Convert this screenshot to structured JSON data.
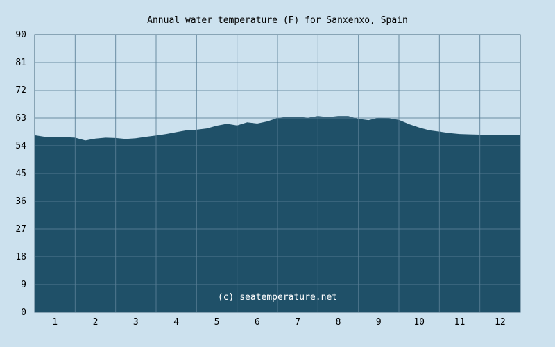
{
  "chart_data": {
    "type": "area",
    "title": "Annual water temperature (F) for Sanxenxo, Spain",
    "xlabel": "",
    "ylabel": "",
    "x_ticks": [
      "1",
      "2",
      "3",
      "4",
      "5",
      "6",
      "7",
      "8",
      "9",
      "10",
      "11",
      "12"
    ],
    "y_ticks": [
      "0",
      "9",
      "18",
      "27",
      "36",
      "45",
      "54",
      "63",
      "72",
      "81",
      "90"
    ],
    "ylim": [
      0,
      90
    ],
    "xlim": [
      0,
      12
    ],
    "grid": true,
    "annotation": "(c) seatemperature.net",
    "x": [
      0.0,
      0.25,
      0.5,
      0.75,
      1.0,
      1.25,
      1.5,
      1.75,
      2.0,
      2.25,
      2.5,
      2.75,
      3.0,
      3.25,
      3.5,
      3.75,
      4.0,
      4.25,
      4.5,
      4.75,
      5.0,
      5.25,
      5.5,
      5.75,
      6.0,
      6.25,
      6.5,
      6.75,
      7.0,
      7.25,
      7.5,
      7.75,
      8.0,
      8.25,
      8.5,
      8.75,
      9.0,
      9.25,
      9.5,
      9.75,
      10.0,
      10.25,
      10.5,
      10.75,
      11.0,
      11.25,
      11.5,
      11.75,
      12.0
    ],
    "values": [
      57.4,
      56.9,
      56.7,
      56.8,
      56.6,
      55.7,
      56.3,
      56.6,
      56.5,
      56.2,
      56.4,
      56.9,
      57.3,
      57.8,
      58.4,
      59.0,
      59.2,
      59.6,
      60.5,
      61.1,
      60.6,
      61.6,
      61.2,
      61.9,
      63.0,
      63.4,
      63.4,
      63.1,
      63.6,
      63.3,
      63.6,
      63.6,
      62.7,
      62.3,
      63.1,
      62.9,
      62.4,
      61.0,
      59.9,
      59.0,
      58.6,
      58.1,
      57.8,
      57.7,
      57.6,
      57.6,
      57.6,
      57.6,
      57.6
    ],
    "colors": {
      "fill": "#1f5068",
      "background": "#cce1ee",
      "grid": "#5a7f96",
      "axis": "#45667c"
    }
  }
}
